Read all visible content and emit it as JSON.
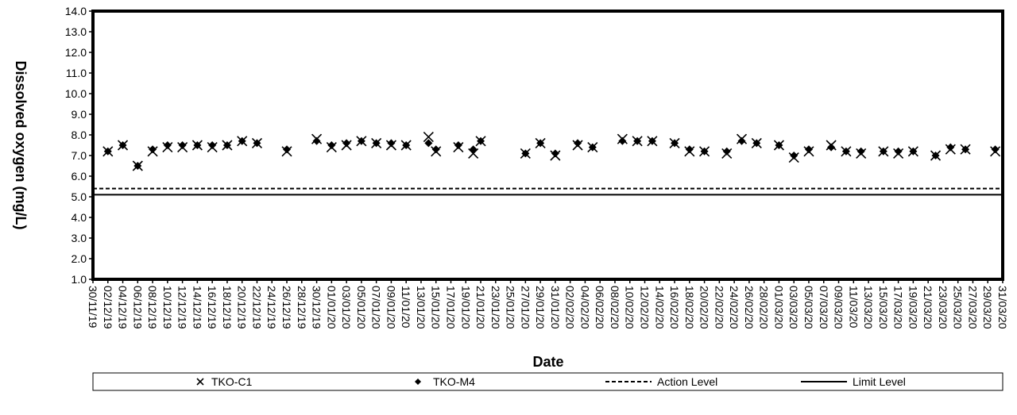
{
  "chart_data": {
    "type": "scatter",
    "title": "",
    "xlabel": "Date",
    "ylabel": "Dissolved oxygen (mg/L)",
    "x_type": "date",
    "x_range": [
      "30/11/19",
      "31/03/20"
    ],
    "x_tick_interval_days": 2,
    "y_range": [
      1.0,
      14.0
    ],
    "y_tick_step": 1.0,
    "y_tick_format": "1 decimal",
    "grid": false,
    "legend_position": "bottom",
    "series": [
      {
        "name": "TKO-C1",
        "marker": "x",
        "color": "#000000",
        "points": [
          [
            "02/12/19",
            7.2
          ],
          [
            "04/12/19",
            7.5
          ],
          [
            "06/12/19",
            6.5
          ],
          [
            "08/12/19",
            7.2
          ],
          [
            "10/12/19",
            7.4
          ],
          [
            "12/12/19",
            7.4
          ],
          [
            "14/12/19",
            7.5
          ],
          [
            "16/12/19",
            7.4
          ],
          [
            "18/12/19",
            7.5
          ],
          [
            "20/12/19",
            7.7
          ],
          [
            "22/12/19",
            7.6
          ],
          [
            "26/12/19",
            7.2
          ],
          [
            "30/12/19",
            7.8
          ],
          [
            "01/01/20",
            7.4
          ],
          [
            "03/01/20",
            7.5
          ],
          [
            "05/01/20",
            7.7
          ],
          [
            "07/01/20",
            7.6
          ],
          [
            "09/01/20",
            7.5
          ],
          [
            "11/01/20",
            7.5
          ],
          [
            "14/01/20",
            7.9
          ],
          [
            "15/01/20",
            7.2
          ],
          [
            "18/01/20",
            7.4
          ],
          [
            "20/01/20",
            7.1
          ],
          [
            "21/01/20",
            7.7
          ],
          [
            "27/01/20",
            7.1
          ],
          [
            "29/01/20",
            7.6
          ],
          [
            "31/01/20",
            7.0
          ],
          [
            "03/02/20",
            7.5
          ],
          [
            "05/02/20",
            7.4
          ],
          [
            "09/02/20",
            7.8
          ],
          [
            "11/02/20",
            7.7
          ],
          [
            "13/02/20",
            7.7
          ],
          [
            "16/02/20",
            7.6
          ],
          [
            "18/02/20",
            7.2
          ],
          [
            "20/02/20",
            7.2
          ],
          [
            "23/02/20",
            7.1
          ],
          [
            "25/02/20",
            7.8
          ],
          [
            "27/02/20",
            7.6
          ],
          [
            "01/03/20",
            7.5
          ],
          [
            "03/03/20",
            6.9
          ],
          [
            "05/03/20",
            7.2
          ],
          [
            "08/03/20",
            7.5
          ],
          [
            "10/03/20",
            7.2
          ],
          [
            "12/03/20",
            7.1
          ],
          [
            "15/03/20",
            7.2
          ],
          [
            "17/03/20",
            7.1
          ],
          [
            "19/03/20",
            7.2
          ],
          [
            "22/03/20",
            7.0
          ],
          [
            "24/03/20",
            7.3
          ],
          [
            "26/03/20",
            7.3
          ],
          [
            "30/03/20",
            7.2
          ]
        ]
      },
      {
        "name": "TKO-M4",
        "marker": "diamond",
        "color": "#000000",
        "points": [
          [
            "02/12/19",
            7.2
          ],
          [
            "04/12/19",
            7.5
          ],
          [
            "06/12/19",
            6.5
          ],
          [
            "08/12/19",
            7.3
          ],
          [
            "10/12/19",
            7.5
          ],
          [
            "12/12/19",
            7.5
          ],
          [
            "14/12/19",
            7.5
          ],
          [
            "16/12/19",
            7.5
          ],
          [
            "18/12/19",
            7.5
          ],
          [
            "20/12/19",
            7.7
          ],
          [
            "22/12/19",
            7.6
          ],
          [
            "26/12/19",
            7.3
          ],
          [
            "30/12/19",
            7.7
          ],
          [
            "01/01/20",
            7.5
          ],
          [
            "03/01/20",
            7.6
          ],
          [
            "05/01/20",
            7.7
          ],
          [
            "07/01/20",
            7.6
          ],
          [
            "09/01/20",
            7.6
          ],
          [
            "11/01/20",
            7.5
          ],
          [
            "14/01/20",
            7.6
          ],
          [
            "15/01/20",
            7.3
          ],
          [
            "18/01/20",
            7.5
          ],
          [
            "20/01/20",
            7.3
          ],
          [
            "21/01/20",
            7.7
          ],
          [
            "27/01/20",
            7.1
          ],
          [
            "29/01/20",
            7.6
          ],
          [
            "31/01/20",
            7.1
          ],
          [
            "03/02/20",
            7.6
          ],
          [
            "05/02/20",
            7.4
          ],
          [
            "09/02/20",
            7.7
          ],
          [
            "11/02/20",
            7.7
          ],
          [
            "13/02/20",
            7.7
          ],
          [
            "16/02/20",
            7.6
          ],
          [
            "18/02/20",
            7.3
          ],
          [
            "20/02/20",
            7.2
          ],
          [
            "23/02/20",
            7.2
          ],
          [
            "25/02/20",
            7.7
          ],
          [
            "27/02/20",
            7.6
          ],
          [
            "01/03/20",
            7.5
          ],
          [
            "03/03/20",
            7.0
          ],
          [
            "05/03/20",
            7.3
          ],
          [
            "08/03/20",
            7.4
          ],
          [
            "10/03/20",
            7.2
          ],
          [
            "12/03/20",
            7.2
          ],
          [
            "15/03/20",
            7.2
          ],
          [
            "17/03/20",
            7.2
          ],
          [
            "19/03/20",
            7.2
          ],
          [
            "22/03/20",
            7.0
          ],
          [
            "24/03/20",
            7.4
          ],
          [
            "26/03/20",
            7.3
          ],
          [
            "30/03/20",
            7.3
          ]
        ]
      }
    ],
    "reference_lines": [
      {
        "name": "Action Level",
        "value": 5.4,
        "style": "dashed",
        "color": "#000000"
      },
      {
        "name": "Limit Level",
        "value": 5.1,
        "style": "solid",
        "color": "#000000"
      }
    ],
    "legend": [
      "TKO-C1",
      "TKO-M4",
      "Action Level",
      "Limit Level"
    ]
  }
}
